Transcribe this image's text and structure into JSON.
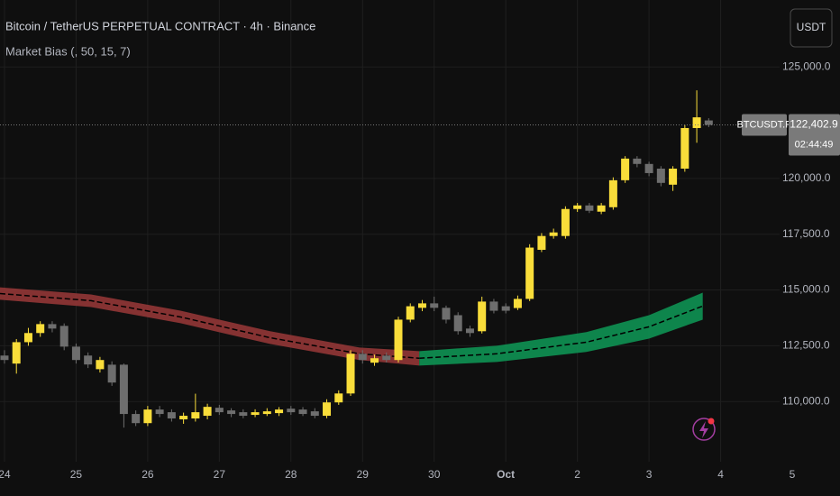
{
  "chart_data": {
    "type": "candlestick",
    "title": "Bitcoin / TetherUS PERPETUAL CONTRACT · 4h · Binance",
    "indicator": "Market Bias (, 50, 15, 7)",
    "currency": "USDT",
    "symbol": "BTCUSDT.P",
    "last_price": {
      "value": 122402.9,
      "label": "122,402.9"
    },
    "countdown": "02:44:49",
    "up_color": "#f9dd3a",
    "down_color": "#6e6e6e",
    "grid": true,
    "xlim": [
      -1.5,
      280
    ],
    "xticks": [
      {
        "value": 0,
        "label": "24"
      },
      {
        "value": 24,
        "label": "25"
      },
      {
        "value": 48,
        "label": "26"
      },
      {
        "value": 72,
        "label": "27"
      },
      {
        "value": 96,
        "label": "28"
      },
      {
        "value": 120,
        "label": "29"
      },
      {
        "value": 144,
        "label": "30"
      },
      {
        "value": 168,
        "label": "Oct"
      },
      {
        "value": 192,
        "label": "2"
      },
      {
        "value": 216,
        "label": "3"
      },
      {
        "value": 240,
        "label": "4"
      },
      {
        "value": 264,
        "label": "5"
      }
    ],
    "ylim": [
      107300,
      128000
    ],
    "yticks": [
      {
        "value": 110000,
        "label": "110,000.0"
      },
      {
        "value": 112500,
        "label": "112,500.0"
      },
      {
        "value": 115000,
        "label": "115,000.0"
      },
      {
        "value": 117500,
        "label": "117,500.0"
      },
      {
        "value": 120000,
        "label": "120,000.0"
      },
      {
        "value": 125000,
        "label": "125,000.0"
      }
    ],
    "x": [
      0,
      4,
      8,
      12,
      16,
      20,
      24,
      28,
      32,
      36,
      40,
      44,
      48,
      52,
      56,
      60,
      64,
      68,
      72,
      76,
      80,
      84,
      88,
      92,
      96,
      100,
      104,
      108,
      112,
      116,
      120,
      124,
      128,
      132,
      136,
      140,
      144,
      148,
      152,
      156,
      160,
      164,
      168,
      172,
      176,
      180,
      184,
      188,
      192,
      196,
      200,
      204,
      208,
      212,
      216,
      220,
      224,
      228,
      232,
      236
    ],
    "open": [
      112060,
      111700,
      112660,
      113070,
      113470,
      113390,
      112460,
      112060,
      111450,
      111650,
      111650,
      109440,
      109030,
      109640,
      109520,
      109200,
      109240,
      109360,
      109720,
      109600,
      109520,
      109400,
      109440,
      109480,
      109680,
      109640,
      109560,
      109360,
      109960,
      110360,
      112140,
      111740,
      112060,
      111860,
      113670,
      114200,
      114400,
      114200,
      113870,
      113270,
      113150,
      114480,
      114270,
      114190,
      114600,
      116800,
      117420,
      117420,
      118630,
      118790,
      118510,
      118710,
      119920,
      120890,
      120650,
      120440,
      119720,
      120440,
      122260,
      122600
    ],
    "high": [
      112300,
      112800,
      113300,
      113600,
      113600,
      113500,
      112600,
      112200,
      112000,
      111800,
      111700,
      109600,
      109800,
      109800,
      109650,
      109500,
      110350,
      109900,
      109850,
      109700,
      109650,
      109650,
      109700,
      109750,
      109800,
      109750,
      109700,
      110100,
      110500,
      112300,
      112300,
      112100,
      112200,
      113800,
      114400,
      114550,
      114700,
      114300,
      114000,
      113400,
      114700,
      114600,
      114400,
      114750,
      117050,
      117550,
      117750,
      118750,
      118900,
      118900,
      118900,
      120050,
      121000,
      121000,
      120750,
      120550,
      120550,
      122400,
      123950,
      122700
    ],
    "low": [
      111700,
      111250,
      112500,
      112900,
      113100,
      112300,
      111700,
      111500,
      111300,
      110700,
      108830,
      108900,
      108900,
      109300,
      109100,
      109000,
      109100,
      109200,
      109400,
      109300,
      109250,
      109300,
      109350,
      109350,
      109400,
      109350,
      109250,
      109250,
      109850,
      110250,
      111700,
      111600,
      111750,
      111750,
      113550,
      114050,
      114050,
      113500,
      113000,
      112900,
      113050,
      113950,
      113950,
      114100,
      114500,
      116700,
      117300,
      117300,
      118500,
      118450,
      118400,
      118600,
      119800,
      120500,
      120100,
      119650,
      119440,
      120300,
      121600,
      122300
    ],
    "close": [
      111860,
      112660,
      113070,
      113470,
      113270,
      112460,
      111860,
      111660,
      111860,
      110850,
      109440,
      109030,
      109640,
      109440,
      109240,
      109360,
      109520,
      109760,
      109520,
      109440,
      109360,
      109520,
      109560,
      109640,
      109520,
      109440,
      109360,
      109960,
      110360,
      112140,
      111860,
      111940,
      111860,
      113670,
      114270,
      114400,
      114200,
      113670,
      113150,
      113070,
      114480,
      114070,
      114070,
      114600,
      116900,
      117420,
      117580,
      118630,
      118790,
      118550,
      118790,
      119920,
      120890,
      120650,
      120240,
      119800,
      120440,
      122260,
      122740,
      122400
    ],
    "bands": [
      {
        "color": "#9a3838",
        "x": [
          -1.5,
          29,
          59,
          89,
          119,
          139
        ],
        "upper": [
          115120,
          114800,
          114070,
          113150,
          112420,
          112260
        ],
        "mid": [
          114840,
          114520,
          113790,
          112860,
          112140,
          111940
        ],
        "lower": [
          114560,
          114235,
          113510,
          112580,
          111860,
          111610
        ]
      },
      {
        "color": "#0e9a57",
        "x": [
          139,
          165,
          195,
          216,
          234
        ],
        "upper": [
          112260,
          112500,
          113110,
          113870,
          114880
        ],
        "mid": [
          111940,
          112140,
          112660,
          113350,
          114280
        ],
        "lower": [
          111610,
          111775,
          112220,
          112820,
          113670
        ]
      }
    ]
  }
}
